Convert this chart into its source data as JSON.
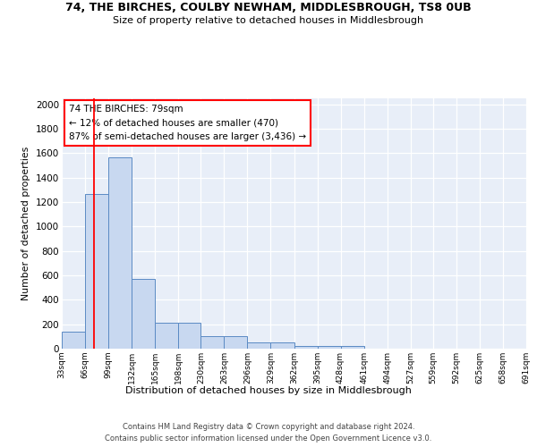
{
  "title1": "74, THE BIRCHES, COULBY NEWHAM, MIDDLESBROUGH, TS8 0UB",
  "title2": "Size of property relative to detached houses in Middlesbrough",
  "xlabel": "Distribution of detached houses by size in Middlesbrough",
  "ylabel": "Number of detached properties",
  "bar_color": "#c8d8f0",
  "bar_edge_color": "#5b8ac4",
  "annotation_line1": "74 THE BIRCHES: 79sqm",
  "annotation_line2": "← 12% of detached houses are smaller (470)",
  "annotation_line3": "87% of semi-detached houses are larger (3,436) →",
  "redline_x": 79,
  "footer_line1": "Contains HM Land Registry data © Crown copyright and database right 2024.",
  "footer_line2": "Contains public sector information licensed under the Open Government Licence v3.0.",
  "bin_edges": [
    33,
    66,
    99,
    132,
    165,
    198,
    230,
    263,
    296,
    329,
    362,
    395,
    428,
    461,
    494,
    527,
    559,
    592,
    625,
    658,
    691
  ],
  "bar_heights": [
    140,
    1270,
    1570,
    570,
    215,
    215,
    100,
    100,
    50,
    50,
    25,
    25,
    25,
    0,
    0,
    0,
    0,
    0,
    0,
    0
  ],
  "ylim": [
    0,
    2050
  ],
  "yticks": [
    0,
    200,
    400,
    600,
    800,
    1000,
    1200,
    1400,
    1600,
    1800,
    2000
  ],
  "background_color": "#e8eef8",
  "figsize": [
    6.0,
    5.0
  ],
  "dpi": 100
}
